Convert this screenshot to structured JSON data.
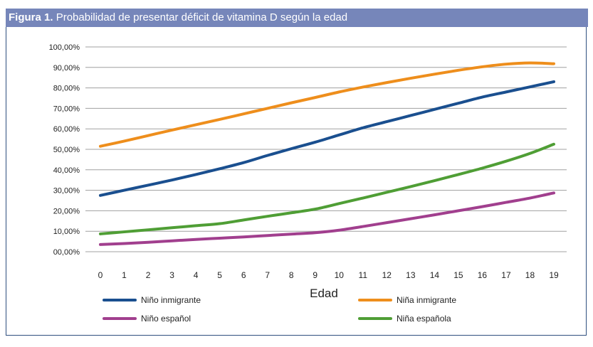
{
  "figure": {
    "label": "Figura 1.",
    "title": "Probabilidad de presentar déficit de vitamina D según la edad"
  },
  "chart_data": {
    "type": "line",
    "title": "",
    "xlabel": "Edad",
    "ylabel": "",
    "x": [
      0,
      1,
      2,
      3,
      4,
      5,
      6,
      7,
      8,
      9,
      10,
      11,
      12,
      13,
      14,
      15,
      16,
      17,
      18,
      19
    ],
    "ylim": [
      0,
      100
    ],
    "yticks": [
      "00,00%",
      "10,00%",
      "20,00%",
      "30,00%",
      "40,00%",
      "50,00%",
      "60,00%",
      "70,00%",
      "80,00%",
      "90,00%",
      "100,00%"
    ],
    "grid": "horizontal",
    "legend_position": "bottom",
    "series": [
      {
        "name": "Niño inmigrante",
        "color": "#1a4f8f",
        "values": [
          27.5,
          30,
          32.5,
          35,
          37.7,
          40.5,
          43.5,
          47,
          50.3,
          53.5,
          57,
          60.5,
          63.5,
          66.5,
          69.5,
          72.5,
          75.5,
          78,
          80.5,
          83
        ]
      },
      {
        "name": "Niña inmigrante",
        "color": "#ee8e1c",
        "values": [
          51.5,
          54,
          56.7,
          59.4,
          62,
          64.6,
          67.3,
          70,
          72.7,
          75.3,
          78,
          80.4,
          82.6,
          84.7,
          86.7,
          88.6,
          90.3,
          91.6,
          92.2,
          91.8
        ]
      },
      {
        "name": "Niño español",
        "color": "#a13f8e",
        "values": [
          3.5,
          4,
          4.6,
          5.3,
          6,
          6.6,
          7.2,
          7.9,
          8.6,
          9.3,
          10.5,
          12.3,
          14.2,
          16.1,
          18,
          20,
          22,
          24.1,
          26.2,
          28.7
        ]
      },
      {
        "name": "Niña española",
        "color": "#4f9e35",
        "values": [
          8.7,
          9.7,
          10.7,
          11.7,
          12.7,
          13.7,
          15.5,
          17.3,
          19,
          20.8,
          23.5,
          26.2,
          29,
          31.8,
          34.7,
          37.7,
          40.8,
          44.2,
          48,
          52.5
        ]
      }
    ]
  }
}
